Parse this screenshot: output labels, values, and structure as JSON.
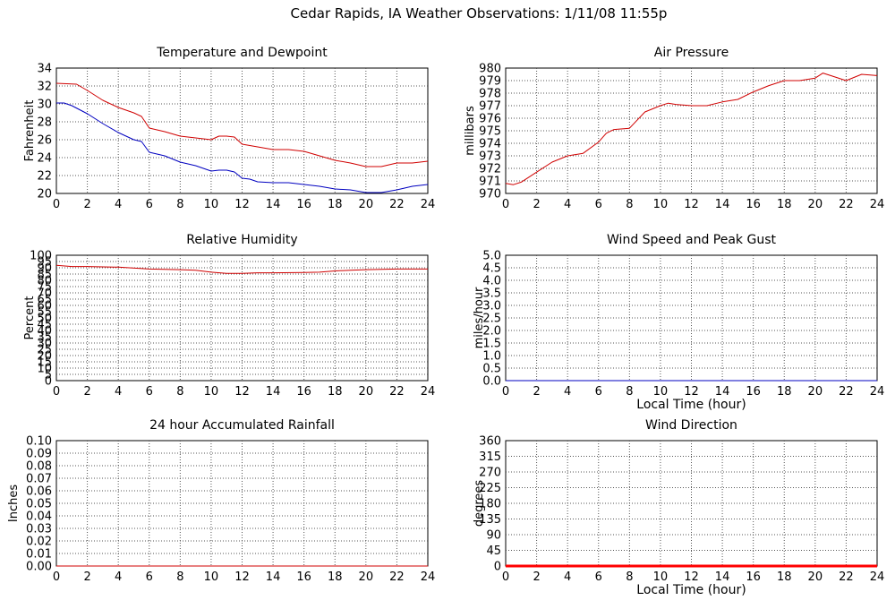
{
  "page": {
    "title": "Cedar Rapids, IA Weather Observations: 1/11/08 11:55p"
  },
  "colors": {
    "red": "#d00000",
    "blue": "#0000c0",
    "grid": "#555555"
  },
  "chart_data": [
    {
      "id": "temp",
      "type": "line",
      "title": "Temperature and Dewpoint",
      "xlabel": "",
      "ylabel": "Fahrenheit",
      "xlim": [
        0,
        24
      ],
      "ylim": [
        20,
        34
      ],
      "xticks": [
        0,
        2,
        4,
        6,
        8,
        10,
        12,
        14,
        16,
        18,
        20,
        22,
        24
      ],
      "yticks": [
        20,
        22,
        24,
        26,
        28,
        30,
        32,
        34
      ],
      "grid": true,
      "series": [
        {
          "color": "#d00000",
          "x": [
            0,
            1.3,
            2,
            3,
            4,
            5,
            5.5,
            6,
            7,
            8,
            9,
            10,
            10.5,
            11,
            11.5,
            12,
            13,
            14,
            15,
            16,
            17,
            18,
            19,
            20,
            21,
            22,
            23,
            24
          ],
          "y": [
            32.3,
            32.2,
            31.5,
            30.4,
            29.6,
            29,
            28.6,
            27.3,
            26.9,
            26.4,
            26.2,
            26.0,
            26.4,
            26.4,
            26.3,
            25.5,
            25.2,
            24.9,
            24.9,
            24.7,
            24.2,
            23.7,
            23.4,
            23.0,
            23.0,
            23.4,
            23.4,
            23.6
          ]
        },
        {
          "color": "#0000c0",
          "x": [
            0,
            0.5,
            1,
            2,
            3,
            4,
            5,
            5.5,
            6,
            6.5,
            7,
            8,
            9,
            10,
            10.5,
            11,
            11.5,
            12,
            12.5,
            13,
            14,
            15,
            16,
            17,
            18,
            19,
            20,
            21,
            22,
            23,
            24
          ],
          "y": [
            30.1,
            30.1,
            29.8,
            28.9,
            27.8,
            26.8,
            26.0,
            25.8,
            24.6,
            24.4,
            24.2,
            23.5,
            23.1,
            22.5,
            22.6,
            22.6,
            22.4,
            21.7,
            21.6,
            21.3,
            21.2,
            21.2,
            21.0,
            20.8,
            20.5,
            20.4,
            20.1,
            20.1,
            20.4,
            20.8,
            21.0
          ]
        }
      ]
    },
    {
      "id": "pressure",
      "type": "line",
      "title": "Air Pressure",
      "xlabel": "",
      "ylabel": "millibars",
      "xlim": [
        0,
        24
      ],
      "ylim": [
        970,
        980
      ],
      "xticks": [
        0,
        2,
        4,
        6,
        8,
        10,
        12,
        14,
        16,
        18,
        20,
        22,
        24
      ],
      "yticks": [
        970,
        971,
        972,
        973,
        974,
        975,
        976,
        977,
        978,
        979,
        980
      ],
      "grid": true,
      "series": [
        {
          "color": "#d00000",
          "x": [
            0,
            0.5,
            1,
            2,
            3,
            4,
            5,
            6,
            6.5,
            7,
            8,
            9,
            10,
            10.5,
            11,
            12,
            13,
            14,
            15,
            16,
            17,
            18,
            19,
            20,
            20.5,
            21,
            22,
            23,
            24
          ],
          "y": [
            970.8,
            970.7,
            970.9,
            971.7,
            972.5,
            973.0,
            973.2,
            974.1,
            974.8,
            975.1,
            975.2,
            976.5,
            977.0,
            977.2,
            977.1,
            977.0,
            977.0,
            977.3,
            977.5,
            978.1,
            978.6,
            979.0,
            979.0,
            979.2,
            979.6,
            979.4,
            979.0,
            979.5,
            979.4
          ]
        }
      ]
    },
    {
      "id": "humidity",
      "type": "line",
      "title": "Relative Humidity",
      "xlabel": "",
      "ylabel": "Percent",
      "xlim": [
        0,
        24
      ],
      "ylim": [
        0,
        100
      ],
      "xticks": [
        0,
        2,
        4,
        6,
        8,
        10,
        12,
        14,
        16,
        18,
        20,
        22,
        24
      ],
      "yticks": [
        0,
        5,
        10,
        15,
        20,
        25,
        30,
        35,
        40,
        45,
        50,
        55,
        60,
        65,
        70,
        75,
        80,
        85,
        90,
        95,
        100
      ],
      "grid": true,
      "series": [
        {
          "color": "#d00000",
          "x": [
            0,
            1,
            2,
            4,
            6,
            8,
            9,
            10,
            11,
            12,
            13,
            14,
            16,
            17,
            18,
            19,
            20,
            22,
            24
          ],
          "y": [
            92,
            91,
            91,
            90.5,
            89,
            88.5,
            88,
            86.5,
            85.5,
            85.5,
            86,
            86,
            86.3,
            86.5,
            87.5,
            88,
            88.5,
            89,
            89
          ]
        }
      ]
    },
    {
      "id": "wind",
      "type": "line",
      "title": "Wind Speed and Peak Gust",
      "xlabel": "Local Time (hour)",
      "ylabel": "miles/hour",
      "xlim": [
        0,
        24
      ],
      "ylim": [
        0,
        5
      ],
      "xticks": [
        0,
        2,
        4,
        6,
        8,
        10,
        12,
        14,
        16,
        18,
        20,
        22,
        24
      ],
      "yticks": [
        0.0,
        0.5,
        1.0,
        1.5,
        2.0,
        2.5,
        3.0,
        3.5,
        4.0,
        4.5,
        5.0
      ],
      "ytickdecimals": 1,
      "grid": true,
      "series": [
        {
          "color": "#0000c0",
          "x": [
            0,
            24
          ],
          "y": [
            0,
            0
          ]
        }
      ]
    },
    {
      "id": "rain",
      "type": "line",
      "title": "24 hour Accumulated Rainfall",
      "xlabel": "",
      "ylabel": "Inches",
      "xlim": [
        0,
        24
      ],
      "ylim": [
        0,
        0.1
      ],
      "xticks": [
        0,
        2,
        4,
        6,
        8,
        10,
        12,
        14,
        16,
        18,
        20,
        22,
        24
      ],
      "yticks": [
        0.0,
        0.01,
        0.02,
        0.03,
        0.04,
        0.05,
        0.06,
        0.07,
        0.08,
        0.09,
        0.1
      ],
      "ytickdecimals": 2,
      "grid": true,
      "series": [
        {
          "color": "#d00000",
          "x": [
            0,
            24
          ],
          "y": [
            0,
            0
          ]
        }
      ]
    },
    {
      "id": "direction",
      "type": "line",
      "title": "Wind Direction",
      "xlabel": "Local Time (hour)",
      "ylabel": "degrees",
      "xlim": [
        0,
        24
      ],
      "ylim": [
        0,
        360
      ],
      "xticks": [
        0,
        2,
        4,
        6,
        8,
        10,
        12,
        14,
        16,
        18,
        20,
        22,
        24
      ],
      "yticks": [
        0,
        45,
        90,
        135,
        180,
        225,
        270,
        315,
        360
      ],
      "grid": true,
      "series": [
        {
          "color": "#ff0000",
          "x": [
            0,
            24
          ],
          "y": [
            0,
            0
          ],
          "thick": true
        }
      ]
    }
  ]
}
